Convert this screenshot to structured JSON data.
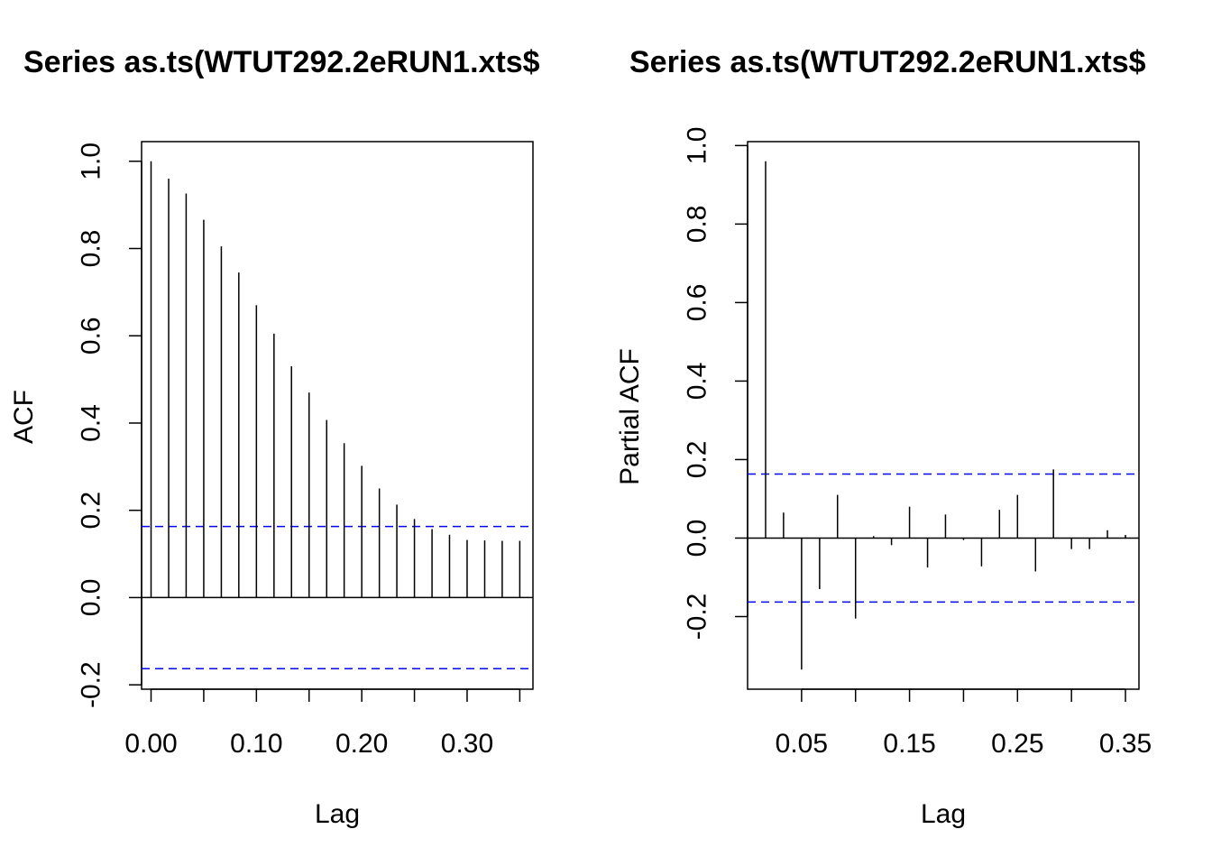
{
  "chart_data": [
    {
      "type": "bar",
      "title": "Series  as.ts(WTUT292.2eRUN1.xts$",
      "xlabel": "Lag",
      "ylabel": "ACF",
      "xlim": [
        -0.009,
        0.3625
      ],
      "ylim": [
        -0.21,
        1.045
      ],
      "x_ticks": [
        0.0,
        0.1,
        0.2,
        0.3
      ],
      "x_tick_labels": [
        "0.00",
        "0.10",
        "0.20",
        "0.30"
      ],
      "y_ticks": [
        -0.2,
        0.0,
        0.2,
        0.4,
        0.6,
        0.8,
        1.0
      ],
      "y_tick_labels": [
        "-0.2",
        "0.0",
        "0.2",
        "0.4",
        "0.6",
        "0.8",
        "1.0"
      ],
      "minor_x_ticks": [
        0.05,
        0.15,
        0.25,
        0.35
      ],
      "confidence_band": 0.163,
      "lags": [
        0.0,
        0.0167,
        0.0333,
        0.05,
        0.0667,
        0.0833,
        0.1,
        0.1167,
        0.1333,
        0.15,
        0.1667,
        0.1833,
        0.2,
        0.2167,
        0.2333,
        0.25,
        0.2667,
        0.2833,
        0.3,
        0.3167,
        0.3333,
        0.35
      ],
      "values": [
        1.0,
        0.96,
        0.926,
        0.866,
        0.805,
        0.745,
        0.67,
        0.605,
        0.53,
        0.47,
        0.407,
        0.354,
        0.302,
        0.25,
        0.213,
        0.18,
        0.157,
        0.144,
        0.132,
        0.131,
        0.13,
        0.13
      ]
    },
    {
      "type": "bar",
      "title": "Series  as.ts(WTUT292.2eRUN1.xts$",
      "xlabel": "Lag",
      "ylabel": "Partial ACF",
      "xlim": [
        0.0,
        0.3625
      ],
      "ylim": [
        -0.385,
        1.01
      ],
      "x_ticks": [
        0.05,
        0.15,
        0.25,
        0.35
      ],
      "x_tick_labels": [
        "0.05",
        "0.15",
        "0.25",
        "0.35"
      ],
      "y_ticks": [
        -0.2,
        0.0,
        0.2,
        0.4,
        0.6,
        0.8,
        1.0
      ],
      "y_tick_labels": [
        "-0.2",
        "0.0",
        "0.2",
        "0.4",
        "0.6",
        "0.8",
        "1.0"
      ],
      "minor_x_ticks": [
        0.1,
        0.2,
        0.3
      ],
      "confidence_band": 0.163,
      "lags": [
        0.0167,
        0.0333,
        0.05,
        0.0667,
        0.0833,
        0.1,
        0.1167,
        0.1333,
        0.15,
        0.1667,
        0.1833,
        0.2,
        0.2167,
        0.2333,
        0.25,
        0.2667,
        0.2833,
        0.3,
        0.3167,
        0.3333,
        0.35
      ],
      "values": [
        0.96,
        0.065,
        -0.335,
        -0.13,
        0.11,
        -0.205,
        0.005,
        -0.018,
        0.08,
        -0.075,
        0.06,
        -0.005,
        -0.072,
        0.072,
        0.11,
        -0.085,
        0.175,
        -0.028,
        -0.028,
        0.02,
        0.008
      ]
    }
  ]
}
